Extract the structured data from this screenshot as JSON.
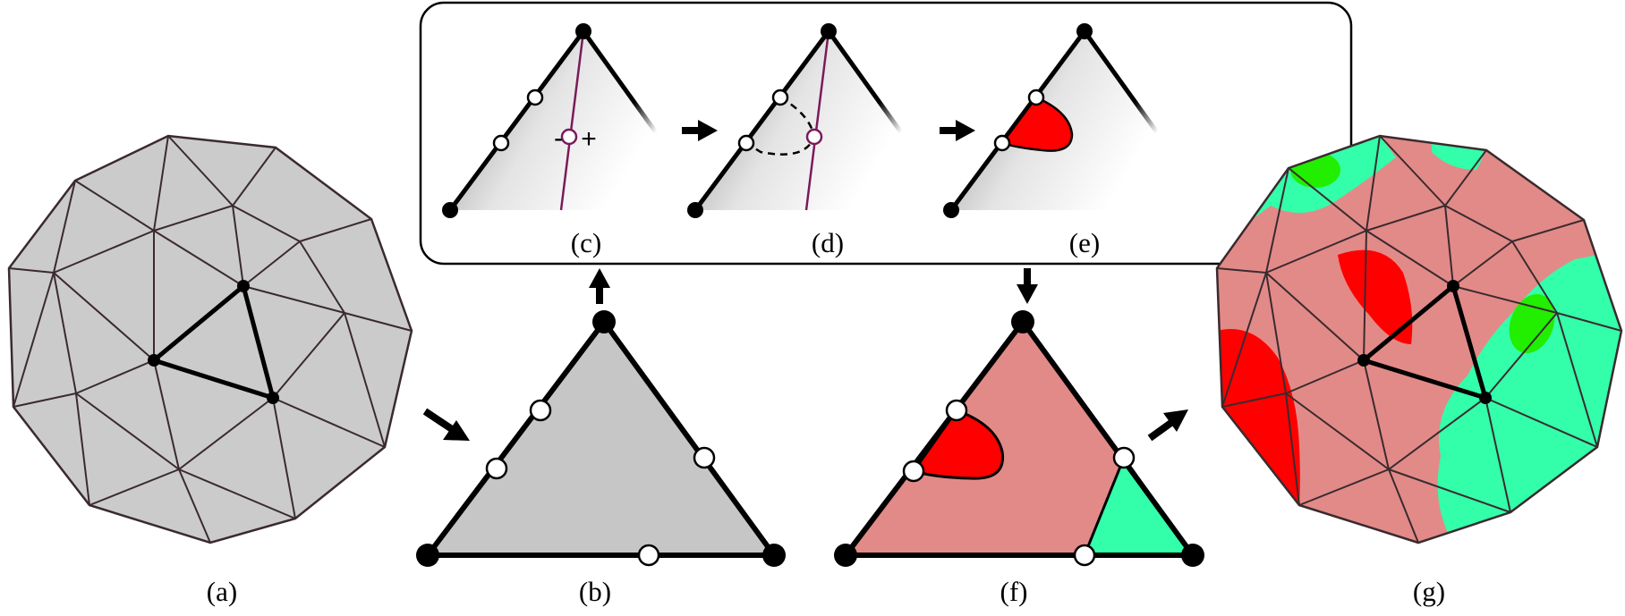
{
  "labels": {
    "a": "(a)",
    "b": "(b)",
    "c": "(c)",
    "d": "(d)",
    "e": "(e)",
    "f": "(f)",
    "g": "(g)"
  },
  "signs": {
    "minus": "-",
    "plus": "+"
  },
  "colors": {
    "mesh_gray": "#cbcbcb",
    "edge_dark": "#3a2a2e",
    "pink": "#e28a88",
    "red": "#ff0000",
    "green_light": "#33ffaa",
    "green_mid": "#22ee00",
    "purple": "#7a1a5a"
  }
}
